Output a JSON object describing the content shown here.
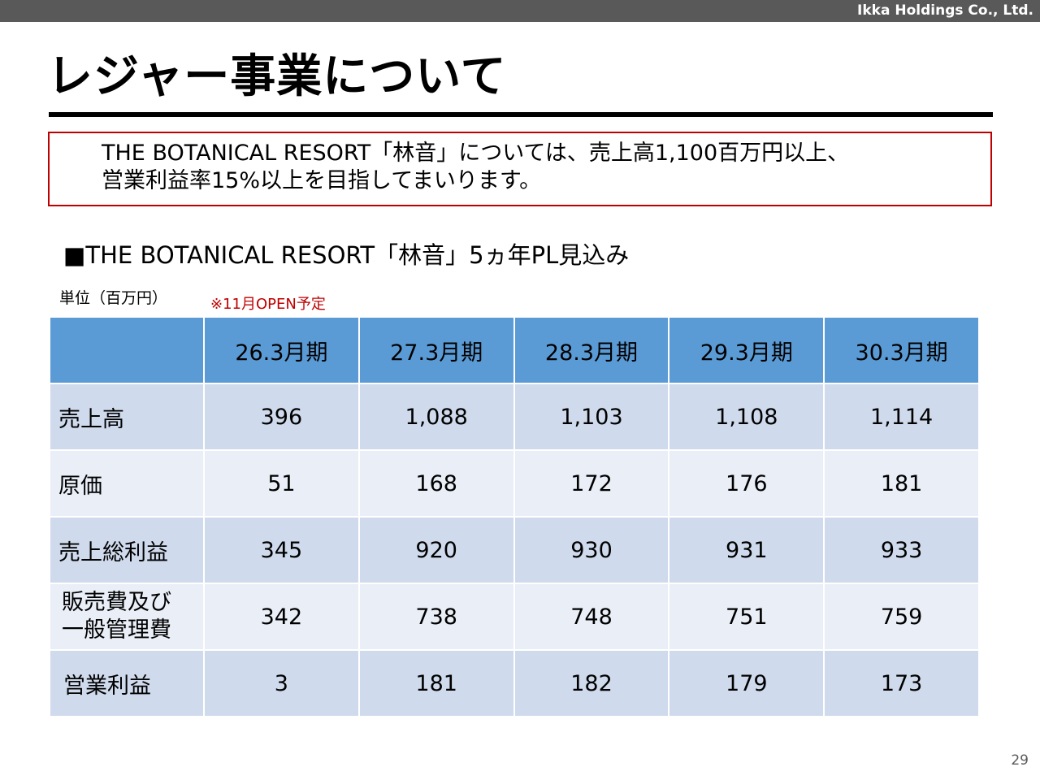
{
  "header": {
    "company": "Ikka Holdings Co., Ltd."
  },
  "title": "レジャー事業について",
  "message": {
    "line1": "THE BOTANICAL RESORT「林音」については、売上高1,100百万円以上、",
    "line2": "営業利益率15%以上を目指してまいります。"
  },
  "section": {
    "heading": "■THE BOTANICAL RESORT「林音」5ヵ年PL見込み",
    "unit": "単位（百万円）",
    "note": "※11月OPEN予定"
  },
  "table": {
    "columns": [
      "",
      "26.3月期",
      "27.3月期",
      "28.3月期",
      "29.3月期",
      "30.3月期"
    ],
    "rows": [
      {
        "label": "売上高",
        "values": [
          "396",
          "1,088",
          "1,103",
          "1,108",
          "1,114"
        ]
      },
      {
        "label": "原価",
        "values": [
          "51",
          "168",
          "172",
          "176",
          "181"
        ]
      },
      {
        "label": "売上総利益",
        "values": [
          "345",
          "920",
          "930",
          "931",
          "933"
        ]
      },
      {
        "label_line1": "販売費及び",
        "label_line2": "一般管理費",
        "values": [
          "342",
          "738",
          "748",
          "751",
          "759"
        ]
      },
      {
        "label": "営業利益",
        "values": [
          "3",
          "181",
          "182",
          "179",
          "173"
        ]
      }
    ]
  },
  "footer": {
    "page": "29"
  },
  "colors": {
    "header_bar": "#595959",
    "accent_red": "#c00000",
    "table_header": "#5b9bd5",
    "table_band_dark": "#cfdaec",
    "table_band_light": "#e9eef7"
  }
}
